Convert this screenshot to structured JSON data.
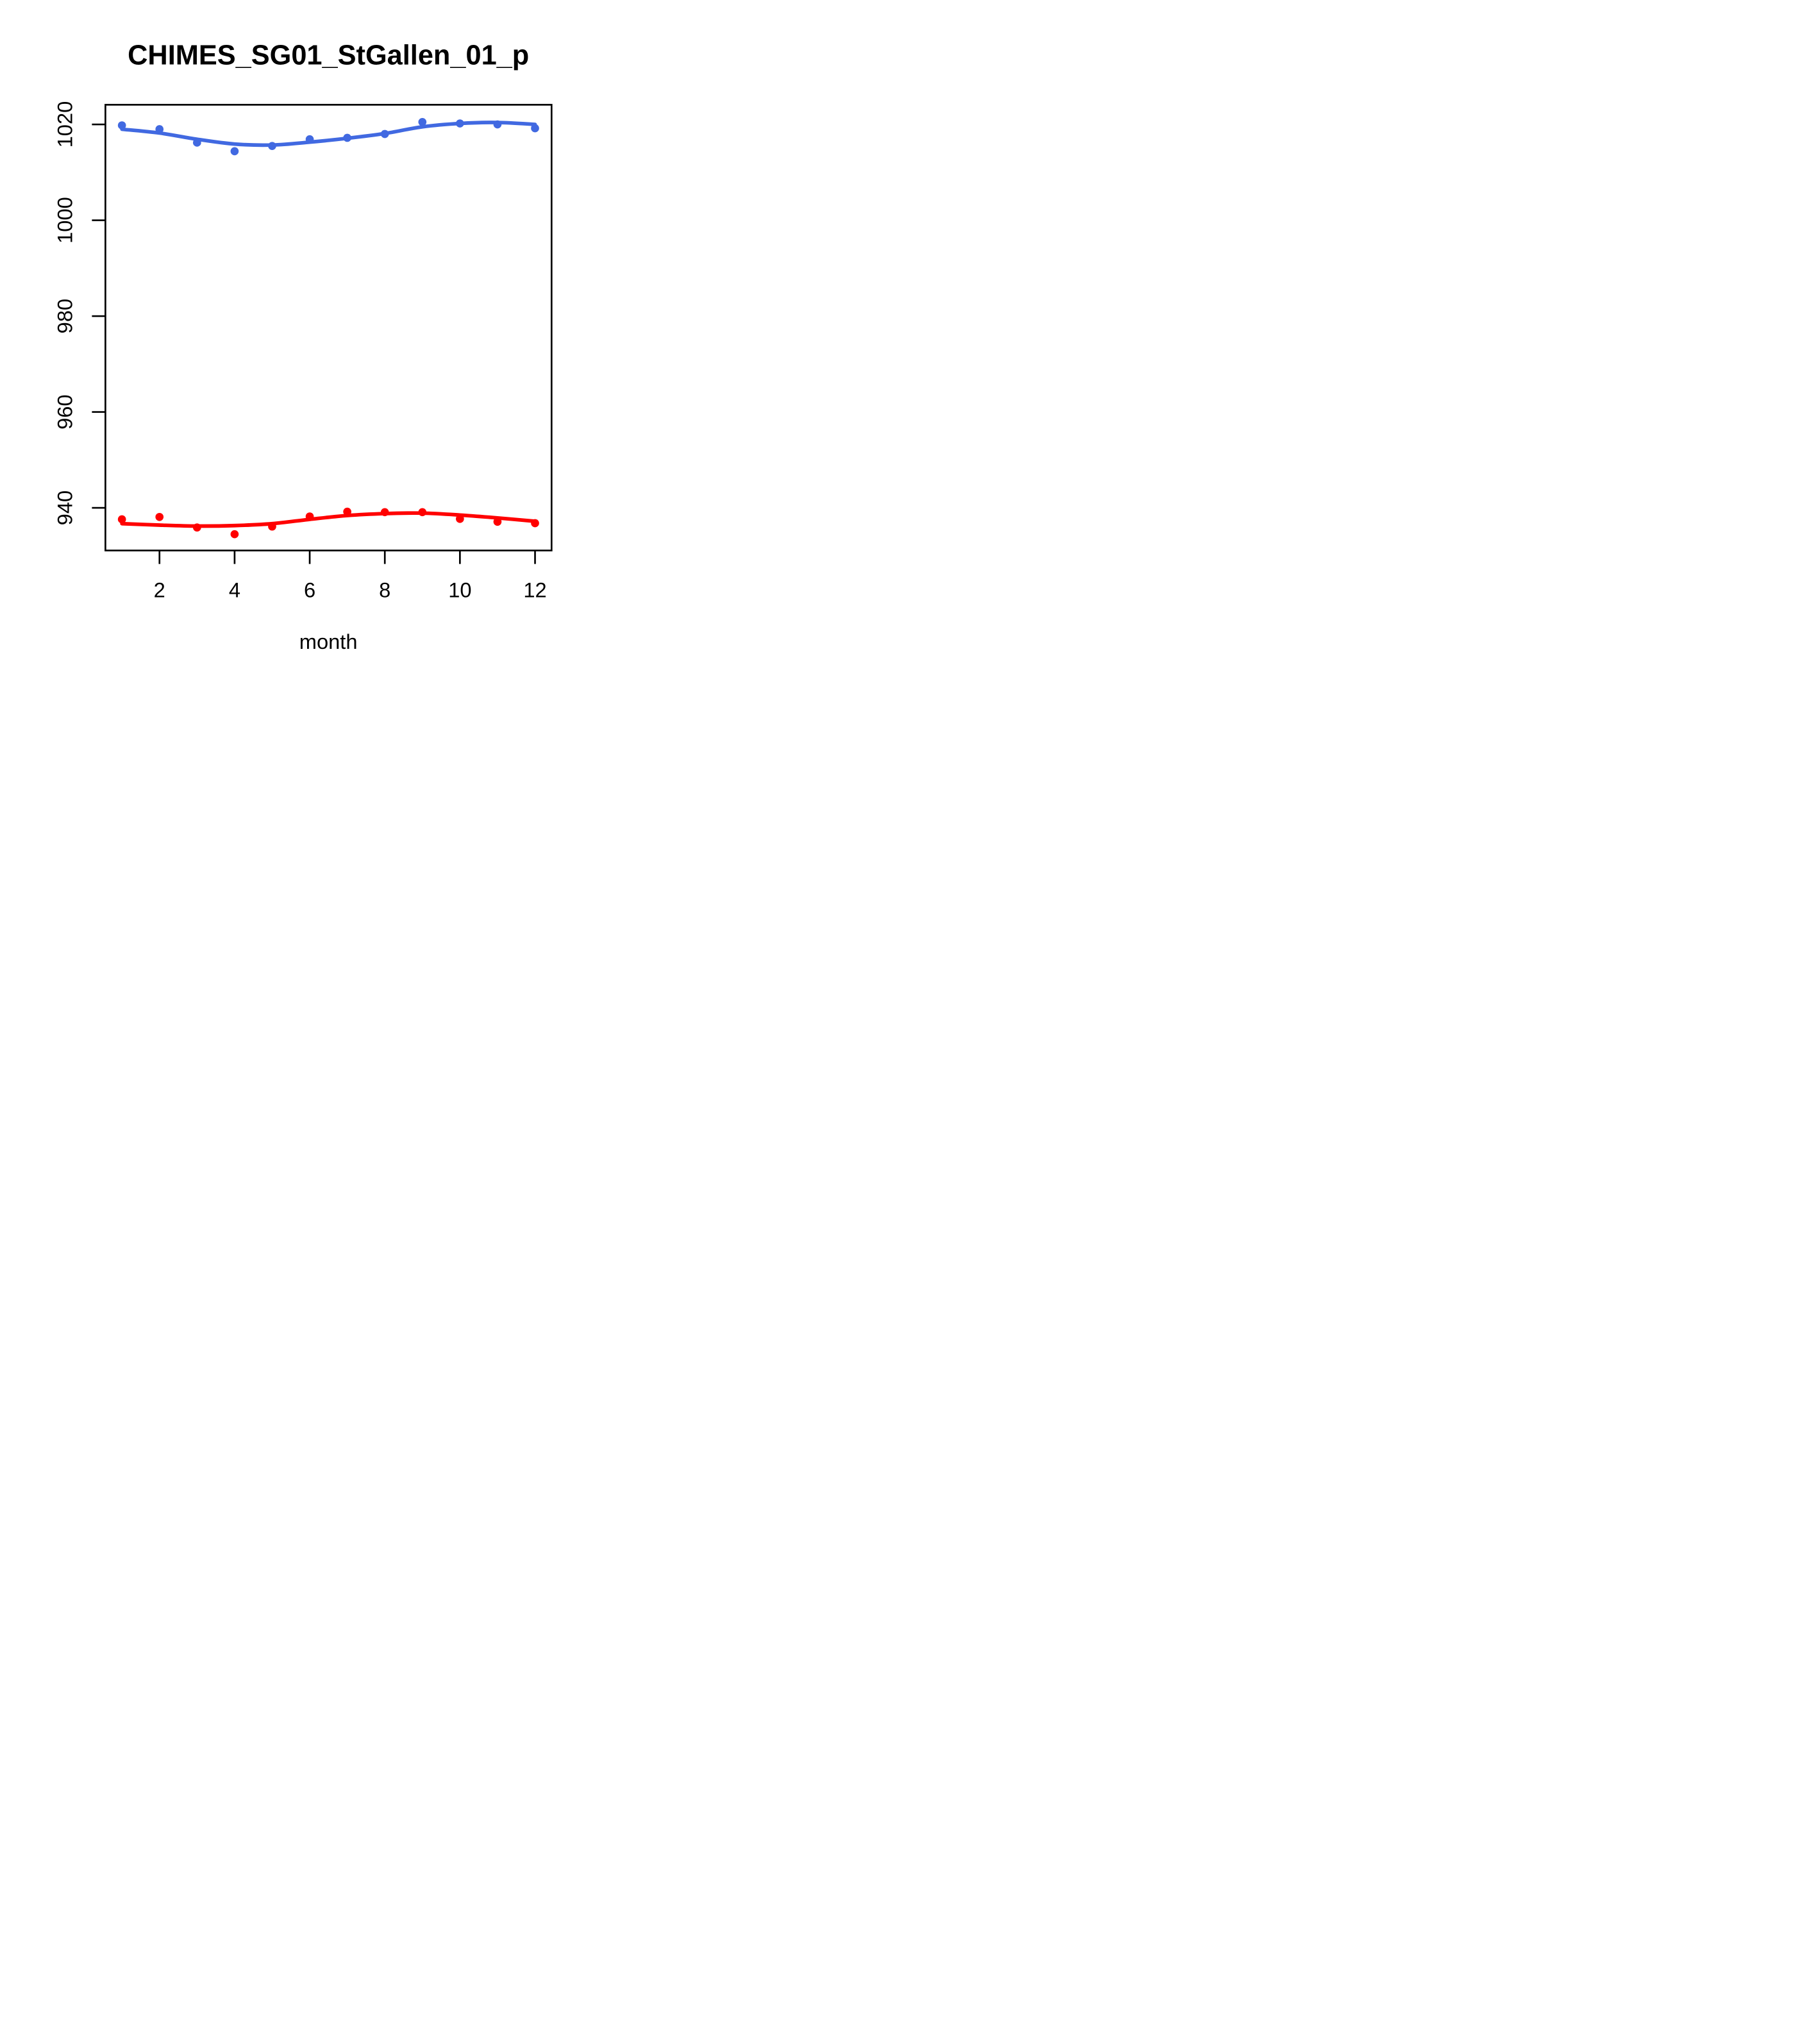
{
  "title": "CHIMES_SG01_StGallen_01_p",
  "x_axis_label": "month",
  "colors": {
    "upper_series": "#4169E1",
    "lower_series": "#FF0000",
    "axis": "#000000",
    "background": "#FFFFFF"
  },
  "chart_data": {
    "type": "scatter",
    "title": "CHIMES_SG01_StGallen_01_p",
    "xlabel": "month",
    "ylabel": "",
    "grid": false,
    "legend": "none",
    "x": [
      1,
      2,
      3,
      4,
      5,
      6,
      7,
      8,
      9,
      10,
      11,
      12
    ],
    "xticks": [
      2,
      4,
      6,
      8,
      10,
      12
    ],
    "yticks": [
      940,
      960,
      980,
      1000,
      1020
    ],
    "xlim": [
      0.56,
      12.44
    ],
    "ylim": [
      931.1,
      1024.1
    ],
    "series": [
      {
        "name": "upper-points",
        "style": "points",
        "color": "#4169E1",
        "values": [
          1019.8,
          1019.0,
          1016.2,
          1014.4,
          1015.5,
          1016.9,
          1017.2,
          1018.0,
          1020.5,
          1020.2,
          1020.0,
          1019.2
        ]
      },
      {
        "name": "upper-smooth-line",
        "style": "line",
        "color": "#4169E1",
        "values": [
          1019.0,
          1018.2,
          1016.9,
          1015.9,
          1015.7,
          1016.3,
          1017.1,
          1018.1,
          1019.5,
          1020.2,
          1020.4,
          1020.0
        ]
      },
      {
        "name": "lower-points",
        "style": "points",
        "color": "#FF0000",
        "values": [
          937.6,
          938.1,
          935.9,
          934.5,
          936.1,
          938.2,
          939.2,
          939.1,
          939.1,
          937.7,
          937.1,
          936.8
        ]
      },
      {
        "name": "lower-smooth-line",
        "style": "line",
        "color": "#FF0000",
        "values": [
          936.7,
          936.4,
          936.2,
          936.3,
          936.7,
          937.6,
          938.4,
          938.8,
          938.9,
          938.5,
          937.9,
          937.2
        ]
      }
    ]
  }
}
